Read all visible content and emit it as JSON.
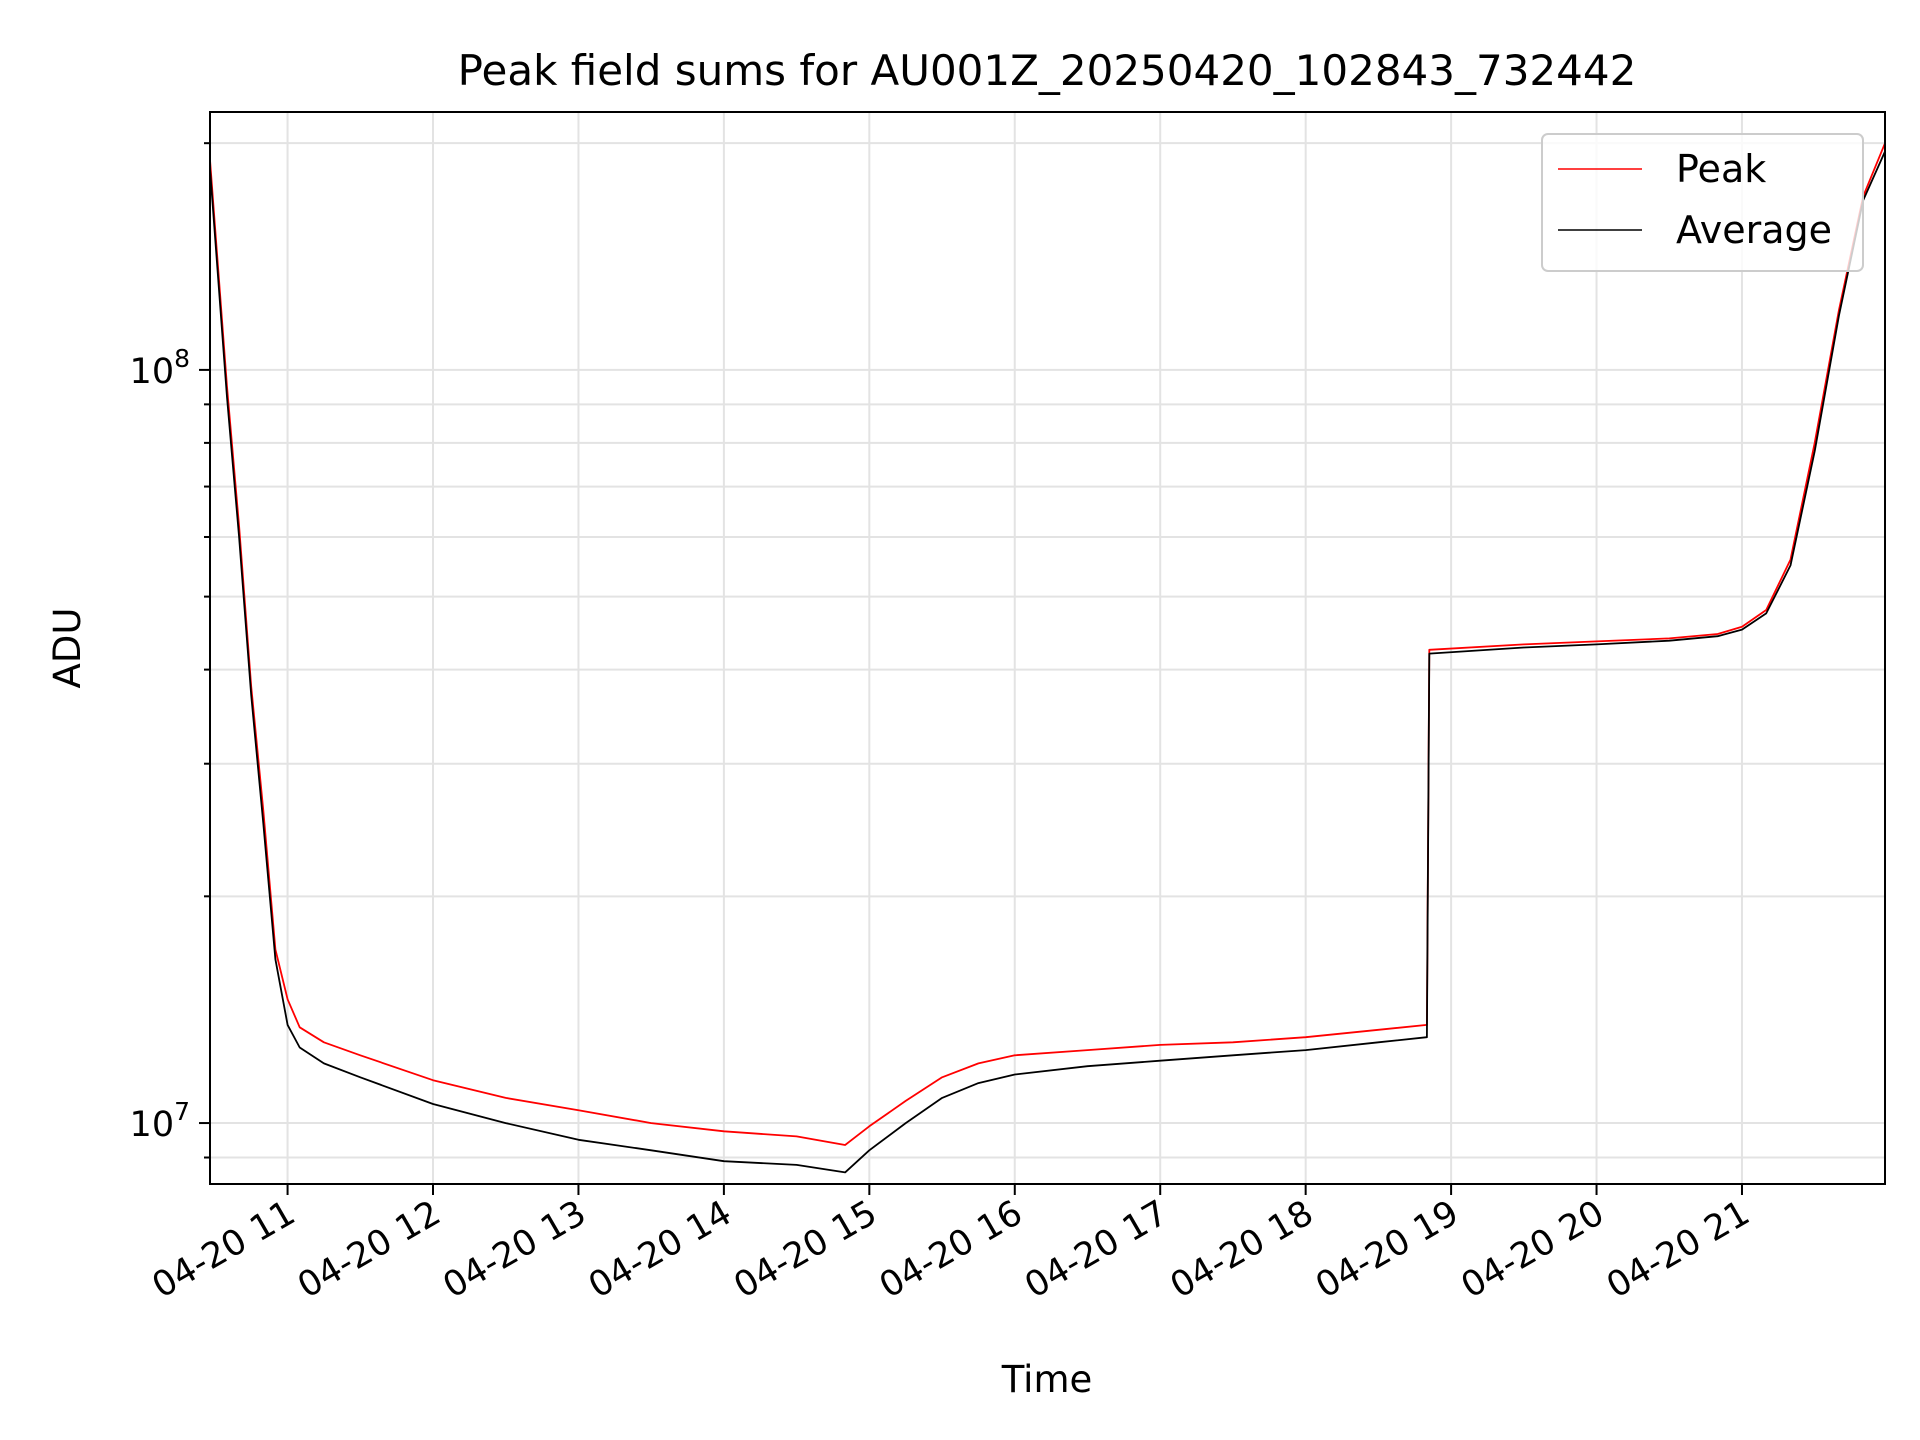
{
  "chart_data": {
    "type": "line",
    "title": "Peak field sums for AU001Z_20250420_102843_732442",
    "xlabel": "Time",
    "ylabel": "ADU",
    "yscale": "log",
    "grid": true,
    "legend_placement": "top-right",
    "xlim": [
      "2025-04-20 10:28",
      "2025-04-20 21:59"
    ],
    "ylim": [
      8300000,
      220000000
    ],
    "x_ticks": [
      "04-20 11",
      "04-20 12",
      "04-20 13",
      "04-20 14",
      "04-20 15",
      "04-20 16",
      "04-20 17",
      "04-20 18",
      "04-20 19",
      "04-20 20",
      "04-20 21"
    ],
    "x_tick_values": [
      "2025-04-20 11:00",
      "2025-04-20 12:00",
      "2025-04-20 13:00",
      "2025-04-20 14:00",
      "2025-04-20 15:00",
      "2025-04-20 16:00",
      "2025-04-20 17:00",
      "2025-04-20 18:00",
      "2025-04-20 19:00",
      "2025-04-20 20:00",
      "2025-04-20 21:00"
    ],
    "y_ticks": [
      {
        "value": 10000000,
        "base": "10",
        "exp": "7"
      },
      {
        "value": 100000000,
        "base": "10",
        "exp": "8"
      }
    ],
    "series": [
      {
        "name": "Peak",
        "color": "#ff0000",
        "x": [
          "2025-04-20 10:28",
          "2025-04-20 10:35",
          "2025-04-20 10:40",
          "2025-04-20 10:45",
          "2025-04-20 10:50",
          "2025-04-20 10:55",
          "2025-04-20 11:00",
          "2025-04-20 11:05",
          "2025-04-20 11:15",
          "2025-04-20 11:30",
          "2025-04-20 12:00",
          "2025-04-20 12:30",
          "2025-04-20 13:00",
          "2025-04-20 13:30",
          "2025-04-20 14:00",
          "2025-04-20 14:30",
          "2025-04-20 14:50",
          "2025-04-20 15:00",
          "2025-04-20 15:15",
          "2025-04-20 15:30",
          "2025-04-20 15:45",
          "2025-04-20 16:00",
          "2025-04-20 16:30",
          "2025-04-20 17:00",
          "2025-04-20 17:30",
          "2025-04-20 18:00",
          "2025-04-20 18:30",
          "2025-04-20 18:50",
          "2025-04-20 18:51",
          "2025-04-20 19:30",
          "2025-04-20 20:00",
          "2025-04-20 20:30",
          "2025-04-20 20:50",
          "2025-04-20 21:00",
          "2025-04-20 21:10",
          "2025-04-20 21:20",
          "2025-04-20 21:30",
          "2025-04-20 21:40",
          "2025-04-20 21:50",
          "2025-04-20 21:59"
        ],
        "y": [
          190000000,
          95000000,
          62000000,
          38000000,
          26000000,
          17000000,
          14600000,
          13400000,
          12800000,
          12300000,
          11400000,
          10800000,
          10400000,
          10000000,
          9750000,
          9600000,
          9350000,
          9900000,
          10700000,
          11500000,
          12000000,
          12300000,
          12500000,
          12700000,
          12800000,
          13000000,
          13300000,
          13500000,
          42500000,
          43200000,
          43600000,
          44000000,
          44600000,
          45600000,
          48000000,
          56000000,
          80000000,
          120000000,
          170000000,
          200000000
        ]
      },
      {
        "name": "Average",
        "color": "#000000",
        "x": [
          "2025-04-20 10:28",
          "2025-04-20 10:35",
          "2025-04-20 10:40",
          "2025-04-20 10:45",
          "2025-04-20 10:50",
          "2025-04-20 10:55",
          "2025-04-20 11:00",
          "2025-04-20 11:05",
          "2025-04-20 11:15",
          "2025-04-20 11:30",
          "2025-04-20 12:00",
          "2025-04-20 12:30",
          "2025-04-20 13:00",
          "2025-04-20 13:30",
          "2025-04-20 14:00",
          "2025-04-20 14:30",
          "2025-04-20 14:50",
          "2025-04-20 15:00",
          "2025-04-20 15:15",
          "2025-04-20 15:30",
          "2025-04-20 15:45",
          "2025-04-20 16:00",
          "2025-04-20 16:30",
          "2025-04-20 17:00",
          "2025-04-20 17:30",
          "2025-04-20 18:00",
          "2025-04-20 18:30",
          "2025-04-20 18:50",
          "2025-04-20 18:51",
          "2025-04-20 19:30",
          "2025-04-20 20:00",
          "2025-04-20 20:30",
          "2025-04-20 20:50",
          "2025-04-20 21:00",
          "2025-04-20 21:10",
          "2025-04-20 21:20",
          "2025-04-20 21:30",
          "2025-04-20 21:40",
          "2025-04-20 21:50",
          "2025-04-20 21:59"
        ],
        "y": [
          185000000,
          92000000,
          60000000,
          37000000,
          25000000,
          16500000,
          13500000,
          12600000,
          12000000,
          11500000,
          10600000,
          10000000,
          9500000,
          9200000,
          8900000,
          8800000,
          8600000,
          9200000,
          10000000,
          10800000,
          11300000,
          11600000,
          11900000,
          12100000,
          12300000,
          12500000,
          12800000,
          13000000,
          42000000,
          42800000,
          43200000,
          43700000,
          44300000,
          45200000,
          47500000,
          55000000,
          78000000,
          118000000,
          168000000,
          195000000
        ]
      }
    ]
  }
}
